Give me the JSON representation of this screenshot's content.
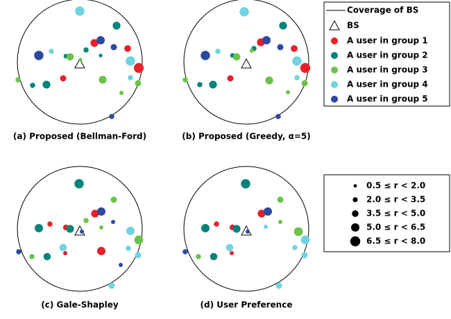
{
  "legend": {
    "coverage": "Coverage of BS",
    "bs": "BS",
    "groups": [
      {
        "name": "A user in group 1",
        "color": "#e8202a"
      },
      {
        "name": "A user in group 2",
        "color": "#00837a"
      },
      {
        "name": "A user in group 3",
        "color": "#6cc24a"
      },
      {
        "name": "A user in group 4",
        "color": "#6fd3e0"
      },
      {
        "name": "A user in group 5",
        "color": "#2d4a9e"
      }
    ]
  },
  "size_legend": [
    "0.5 ≤ r < 2.0",
    "2.0 ≤ r < 3.5",
    "3.5 ≤ r < 5.0",
    "5.0 ≤ r < 6.5",
    "6.5 ≤ r < 8.0"
  ],
  "chart_data": [
    {
      "type": "scatter",
      "caption": "(a) Proposed (Bellman-Ford)",
      "xlim": [
        -90,
        90
      ],
      "ylim": [
        -90,
        90
      ],
      "series": [
        {
          "x": [
            21,
            69,
            85,
            -24
          ],
          "y": [
            27,
            19,
            -9,
            -24
          ],
          "r": [
            5.5,
            4.5,
            7.5,
            4
          ]
        },
        {
          "x": [
            53,
            9,
            30,
            -20,
            -48,
            -68
          ],
          "y": [
            52,
            17,
            9,
            8,
            -33,
            -34
          ],
          "r": [
            5.5,
            3,
            1.5,
            2.5,
            5.5,
            3
          ]
        },
        {
          "x": [
            -14,
            1,
            -89,
            33,
            84,
            60
          ],
          "y": [
            7,
            3,
            -26,
            -26,
            -31,
            -45
          ],
          "r": [
            5,
            1.5,
            3,
            5.5,
            4,
            2
          ]
        },
        {
          "x": [
            0,
            -41,
            73,
            73
          ],
          "y": [
            73,
            15,
            1,
            -23
          ],
          "r": [
            7,
            3,
            7,
            3
          ]
        },
        {
          "x": [
            30,
            49,
            -59,
            46
          ],
          "y": [
            31,
            21,
            9,
            -79
          ],
          "r": [
            6,
            4,
            7,
            3
          ]
        }
      ]
    },
    {
      "type": "scatter",
      "caption": "(b) Proposed (Greedy, α=5)",
      "xlim": [
        -90,
        90
      ],
      "ylim": [
        -90,
        90
      ],
      "series": [
        {
          "x": [
            21,
            69,
            85,
            -23
          ],
          "y": [
            28,
            19,
            -9,
            -24
          ],
          "r": [
            5.5,
            4.5,
            7.5,
            4
          ]
        },
        {
          "x": [
            53,
            11,
            -20,
            -48,
            -67
          ],
          "y": [
            52,
            19,
            9,
            -33,
            -33
          ],
          "r": [
            5.5,
            3,
            2.5,
            5.5,
            3
          ]
        },
        {
          "x": [
            -14,
            8,
            -88,
            33,
            84,
            60
          ],
          "y": [
            7,
            16,
            -26,
            -27,
            -31,
            -44
          ],
          "r": [
            5,
            2,
            3,
            5.5,
            4,
            2
          ]
        },
        {
          "x": [
            -3,
            -41,
            73,
            73
          ],
          "y": [
            72,
            15,
            1,
            -23
          ],
          "r": [
            7,
            3,
            7,
            3
          ]
        },
        {
          "x": [
            29,
            49,
            -59,
            46
          ],
          "y": [
            31,
            21,
            9,
            -79
          ],
          "r": [
            6,
            4,
            7,
            3
          ]
        }
      ]
    },
    {
      "type": "scatter",
      "caption": "(c) Gale-Shapley",
      "xlim": [
        -90,
        90
      ],
      "ylim": [
        -90,
        90
      ],
      "series": [
        {
          "x": [
            22,
            -43,
            -20,
            31,
            -21
          ],
          "y": [
            22,
            7,
            2,
            -32,
            -35
          ],
          "r": [
            5.5,
            3,
            3.5,
            6,
            2
          ]
        },
        {
          "x": [
            -1,
            -59,
            -14,
            -47
          ],
          "y": [
            65,
            1,
            0,
            -40
          ],
          "r": [
            7,
            6,
            5.5,
            5
          ]
        },
        {
          "x": [
            49,
            9,
            31,
            85,
            -69
          ],
          "y": [
            42,
            12,
            2,
            -16,
            -40
          ],
          "r": [
            4,
            3,
            2,
            6.5,
            3
          ]
        },
        {
          "x": [
            73,
            70,
            84,
            -24,
            46
          ],
          "y": [
            -3,
            -28,
            -38,
            -27,
            -82
          ],
          "r": [
            6,
            3,
            4,
            5,
            4
          ]
        },
        {
          "x": [
            31,
            3,
            48,
            -88,
            59
          ],
          "y": [
            25,
            -4,
            10,
            -33,
            -52
          ],
          "r": [
            6,
            2,
            2,
            3,
            2
          ]
        }
      ]
    },
    {
      "type": "scatter",
      "caption": "(d) User Preference",
      "xlim": [
        -90,
        90
      ],
      "ylim": [
        -90,
        90
      ],
      "series": [
        {
          "x": [
            22,
            -43,
            -20,
            -21
          ],
          "y": [
            22,
            7,
            2,
            -35
          ],
          "r": [
            5.5,
            3,
            3.5,
            2
          ]
        },
        {
          "x": [
            -1,
            -59,
            -14,
            -47
          ],
          "y": [
            65,
            1,
            0,
            -40
          ],
          "r": [
            7,
            6,
            5.5,
            5
          ]
        },
        {
          "x": [
            49,
            49,
            75,
            -69
          ],
          "y": [
            42,
            10,
            -4,
            -40
          ],
          "r": [
            4,
            2,
            6.5,
            3
          ]
        },
        {
          "x": [
            28,
            85,
            70,
            84,
            -24,
            47
          ],
          "y": [
            3,
            -16,
            -27,
            -38,
            -27,
            -82
          ],
          "r": [
            2,
            6.5,
            3,
            4,
            5,
            4
          ]
        },
        {
          "x": [
            31,
            2,
            -88
          ],
          "y": [
            25,
            -4,
            -33
          ],
          "r": [
            6,
            2,
            3
          ]
        }
      ]
    }
  ]
}
